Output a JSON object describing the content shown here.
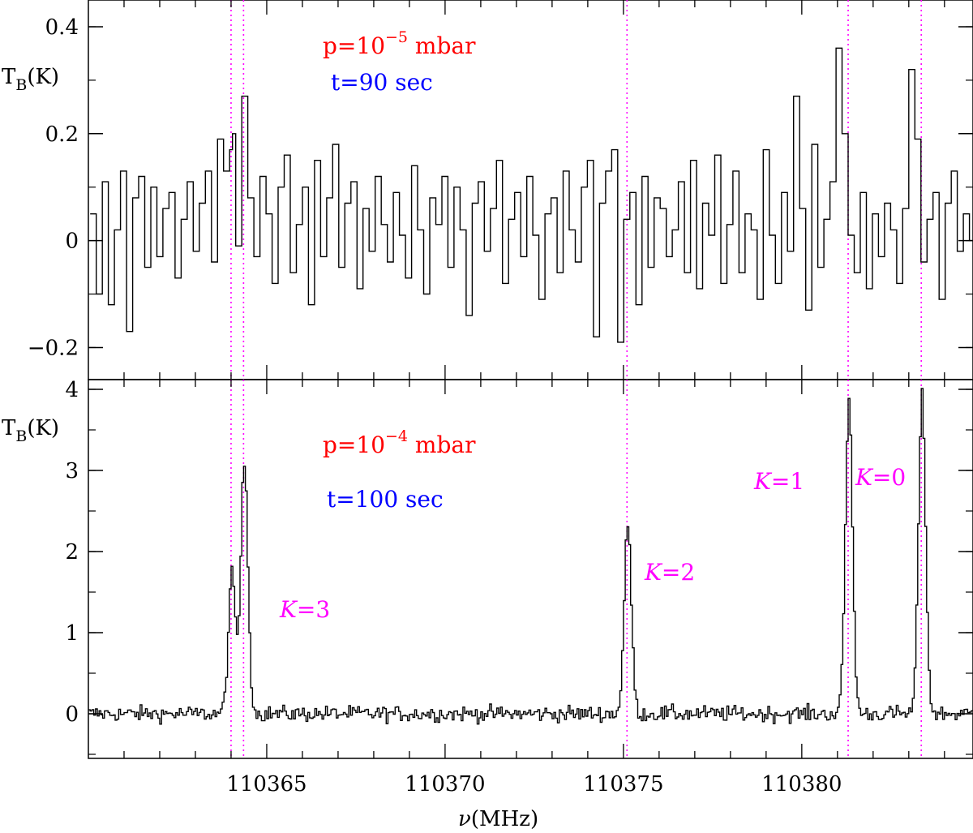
{
  "chart_data": [
    {
      "type": "line",
      "panel": "top",
      "ylabel": "TB(K)",
      "ylabel_main": "T",
      "ylabel_sub": "B",
      "ylabel_unit": "(K)",
      "xlim": [
        110360.0,
        110384.8
      ],
      "ylim": [
        -0.26,
        0.45
      ],
      "yticks": [
        -0.2,
        0,
        0.2,
        0.4
      ],
      "ytick_labels": [
        "−0.2",
        "0",
        "0.2",
        "0.4"
      ],
      "grid": false,
      "annotations": [
        {
          "label_pre": "p=10",
          "label_sup": "−5",
          "label_post": " mbar",
          "color": "#ff0000"
        },
        {
          "label": "t=90 sec",
          "color": "#0000ff"
        }
      ],
      "series": [
        {
          "style": "step",
          "color": "#000000",
          "x": [
            110360.05,
            110360.22,
            110360.39,
            110360.56,
            110360.73,
            110360.9,
            110361.07,
            110361.24,
            110361.41,
            110361.58,
            110361.75,
            110361.92,
            110362.09,
            110362.26,
            110362.43,
            110362.6,
            110362.77,
            110362.94,
            110363.11,
            110363.28,
            110363.45,
            110363.62,
            110363.79,
            110363.96,
            110364.04,
            110364.13,
            110364.3,
            110364.47,
            110364.64,
            110364.81,
            110364.98,
            110365.15,
            110365.32,
            110365.49,
            110365.66,
            110365.83,
            110366.0,
            110366.17,
            110366.34,
            110366.51,
            110366.68,
            110366.85,
            110367.02,
            110367.19,
            110367.36,
            110367.53,
            110367.7,
            110367.87,
            110368.04,
            110368.21,
            110368.38,
            110368.55,
            110368.72,
            110368.89,
            110369.06,
            110369.23,
            110369.4,
            110369.57,
            110369.74,
            110369.91,
            110370.08,
            110370.25,
            110370.42,
            110370.59,
            110370.76,
            110370.93,
            110371.1,
            110371.27,
            110371.44,
            110371.61,
            110371.78,
            110371.95,
            110372.12,
            110372.29,
            110372.46,
            110372.63,
            110372.8,
            110372.97,
            110373.14,
            110373.31,
            110373.48,
            110373.65,
            110373.82,
            110373.99,
            110374.16,
            110374.33,
            110374.5,
            110374.67,
            110374.84,
            110375.01,
            110375.18,
            110375.35,
            110375.52,
            110375.69,
            110375.86,
            110376.03,
            110376.2,
            110376.37,
            110376.54,
            110376.71,
            110376.88,
            110377.05,
            110377.22,
            110377.39,
            110377.56,
            110377.73,
            110377.9,
            110378.07,
            110378.24,
            110378.41,
            110378.58,
            110378.75,
            110378.92,
            110379.09,
            110379.26,
            110379.43,
            110379.6,
            110379.77,
            110379.94,
            110380.11,
            110380.28,
            110380.45,
            110380.62,
            110380.79,
            110380.96,
            110381.13,
            110381.3,
            110381.47,
            110381.64,
            110381.81,
            110381.98,
            110382.15,
            110382.32,
            110382.49,
            110382.66,
            110382.83,
            110383.0,
            110383.17,
            110383.34,
            110383.51,
            110383.68,
            110383.85,
            110384.02,
            110384.19,
            110384.36,
            110384.53,
            110384.7
          ],
          "y": [
            0.05,
            -0.1,
            0.11,
            -0.12,
            0.02,
            0.13,
            -0.17,
            0.08,
            0.12,
            -0.05,
            0.1,
            -0.03,
            0.06,
            0.09,
            -0.07,
            0.04,
            0.11,
            -0.02,
            0.07,
            0.13,
            -0.04,
            0.19,
            0.13,
            0.17,
            0.2,
            -0.01,
            0.27,
            0.08,
            -0.03,
            0.12,
            0.05,
            -0.08,
            0.1,
            0.16,
            -0.06,
            0.03,
            0.1,
            -0.12,
            0.15,
            -0.03,
            0.08,
            0.18,
            -0.05,
            0.07,
            0.11,
            -0.09,
            0.06,
            -0.02,
            0.12,
            0.03,
            -0.04,
            0.09,
            0.01,
            -0.07,
            0.14,
            0.02,
            -0.1,
            0.08,
            0.03,
            0.12,
            -0.05,
            0.1,
            0.02,
            -0.14,
            0.07,
            0.11,
            -0.02,
            0.06,
            0.15,
            -0.08,
            0.04,
            0.09,
            -0.03,
            0.12,
            0.01,
            -0.11,
            0.05,
            0.08,
            -0.06,
            0.13,
            0.02,
            -0.04,
            0.1,
            0.15,
            -0.18,
            0.07,
            0.13,
            0.17,
            -0.19,
            0.04,
            0.09,
            -0.12,
            0.12,
            -0.05,
            0.08,
            0.06,
            -0.03,
            0.02,
            0.11,
            -0.06,
            0.15,
            -0.09,
            0.07,
            0.01,
            0.16,
            -0.08,
            0.03,
            0.13,
            -0.06,
            0.05,
            0.02,
            -0.11,
            0.17,
            0.01,
            -0.08,
            0.09,
            -0.02,
            0.27,
            0.06,
            -0.13,
            0.18,
            -0.05,
            0.04,
            0.11,
            0.36,
            0.2,
            0.01,
            -0.06,
            0.09,
            -0.09,
            0.05,
            -0.03,
            0.07,
            0.02,
            -0.08,
            0.06,
            0.32,
            0.19,
            -0.04,
            0.04,
            0.09,
            -0.11,
            0.07,
            0.13,
            -0.02,
            0.05,
            0.0
          ]
        }
      ],
      "markers_x": [
        110364.0,
        110364.35,
        110375.1,
        110381.3,
        110383.35
      ]
    },
    {
      "type": "line",
      "panel": "bottom",
      "ylabel": "TB(K)",
      "ylabel_main": "T",
      "ylabel_sub": "B",
      "ylabel_unit": "(K)",
      "xlabel": "ν(MHz)",
      "xlabel_nu": "ν",
      "xlabel_rest": "(MHz)",
      "xlim": [
        110360.0,
        110384.8
      ],
      "ylim": [
        -0.55,
        4.12
      ],
      "yticks": [
        0,
        1,
        2,
        3,
        4
      ],
      "ytick_labels": [
        "0",
        "1",
        "2",
        "3",
        "4"
      ],
      "xticks": [
        110365,
        110370,
        110375,
        110380
      ],
      "xtick_labels": [
        "110365",
        "110370",
        "110375",
        "110380"
      ],
      "grid": false,
      "annotations": [
        {
          "label_pre": "p=10",
          "label_sup": "−4",
          "label_post": " mbar",
          "color": "#ff0000"
        },
        {
          "label": "t=100 sec",
          "color": "#0000ff"
        },
        {
          "label_k": "K",
          "label_rest": "=3",
          "color": "#ff00ff"
        },
        {
          "label_k": "K",
          "label_rest": "=2",
          "color": "#ff00ff"
        },
        {
          "label_k": "K",
          "label_rest": "=1",
          "color": "#ff00ff"
        },
        {
          "label_k": "K",
          "label_rest": "=0",
          "color": "#ff00ff"
        }
      ],
      "series": [
        {
          "style": "step",
          "color": "#000000",
          "baseline_noise": 0.07,
          "lines": [
            {
              "center": 110364.0,
              "peak": 1.7,
              "width": 0.1
            },
            {
              "center": 110364.35,
              "peak": 3.1,
              "width": 0.1
            },
            {
              "center": 110375.1,
              "peak": 2.32,
              "width": 0.1
            },
            {
              "center": 110381.3,
              "peak": 3.85,
              "width": 0.1
            },
            {
              "center": 110383.35,
              "peak": 3.9,
              "width": 0.1
            }
          ],
          "x_start": 110360.0,
          "x_end": 110384.8,
          "channel_width": 0.05
        }
      ],
      "markers_x": [
        110364.0,
        110364.35,
        110375.1,
        110381.3,
        110383.35
      ]
    }
  ]
}
